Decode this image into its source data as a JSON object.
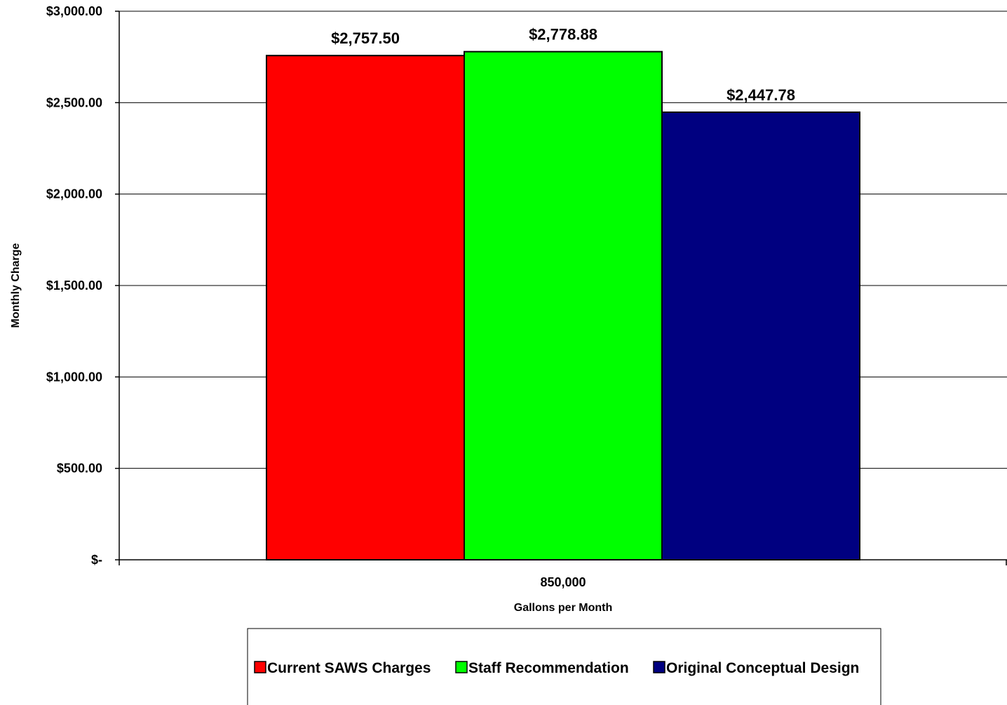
{
  "chart_data": {
    "type": "bar",
    "categories": [
      "850,000"
    ],
    "series": [
      {
        "name": "Current SAWS Charges",
        "values": [
          2757.5
        ],
        "color": "#ff0000",
        "label": "$2,757.50"
      },
      {
        "name": "Staff Recommendation",
        "values": [
          2778.88
        ],
        "color": "#00ff00",
        "label": "$2,778.88"
      },
      {
        "name": "Original Conceptual Design",
        "values": [
          2447.78
        ],
        "color": "#000080",
        "label": "$2,447.78"
      }
    ],
    "xlabel": "Gallons per Month",
    "ylabel": "Monthly Charge",
    "ylim": [
      0,
      3000
    ],
    "yticks": [
      0,
      500,
      1000,
      1500,
      2000,
      2500,
      3000
    ],
    "ytick_labels": [
      "$-",
      "$500.00",
      "$1,000.00",
      "$1,500.00",
      "$2,000.00",
      "$2,500.00",
      "$3,000.00"
    ],
    "grid": true,
    "legend_position": "bottom"
  }
}
